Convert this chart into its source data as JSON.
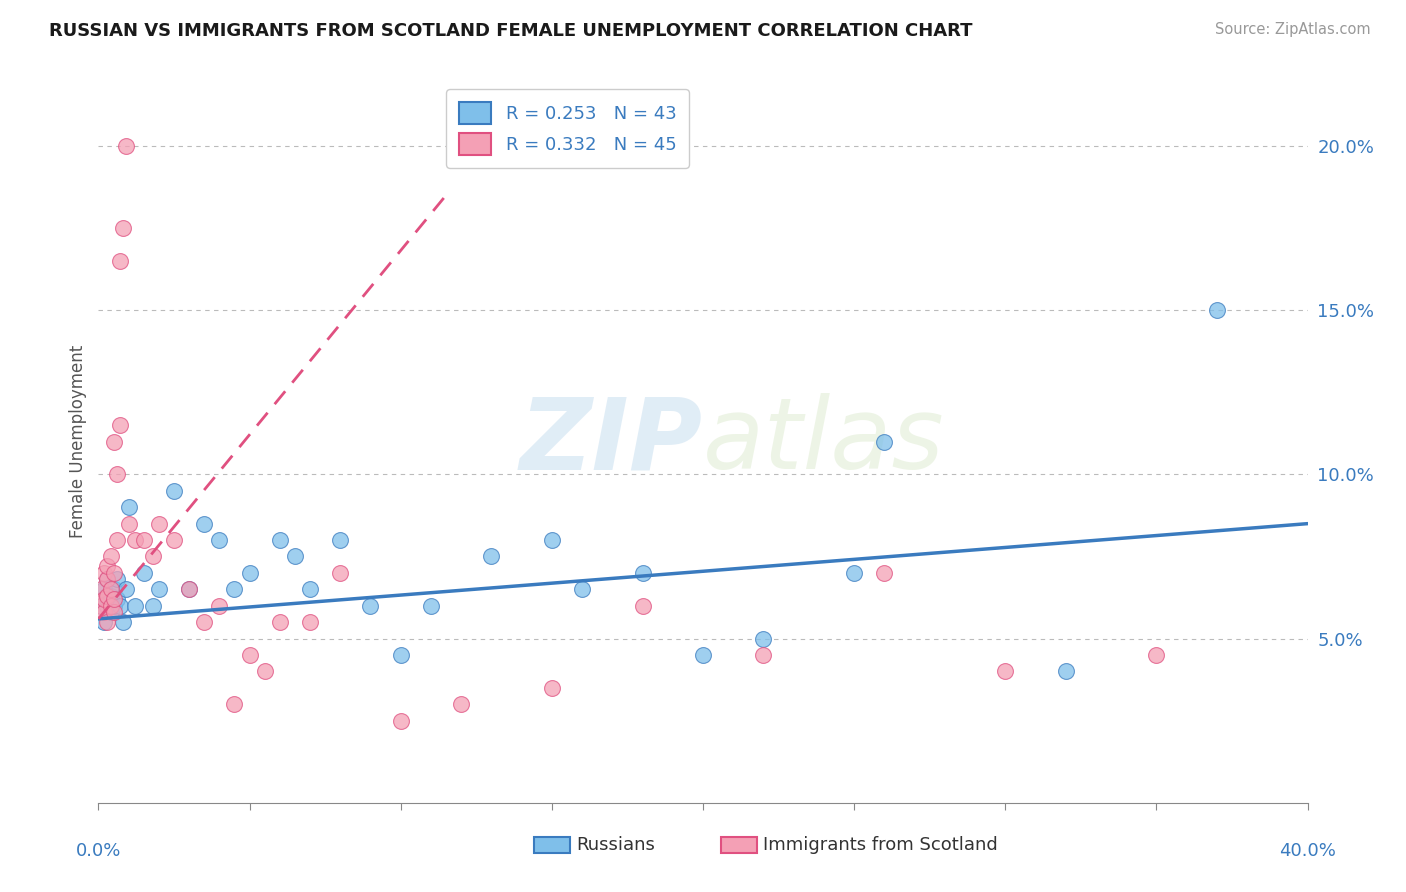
{
  "title": "RUSSIAN VS IMMIGRANTS FROM SCOTLAND FEMALE UNEMPLOYMENT CORRELATION CHART",
  "source": "Source: ZipAtlas.com",
  "ylabel": "Female Unemployment",
  "ytick_values": [
    0.05,
    0.1,
    0.15,
    0.2
  ],
  "xlim": [
    0.0,
    0.4
  ],
  "ylim": [
    0.0,
    0.22
  ],
  "legend_r1_text": "R = 0.253   N = 43",
  "legend_r2_text": "R = 0.332   N = 45",
  "color_blue": "#7fbfea",
  "color_pink": "#f4a0b5",
  "color_blue_line": "#3a7bbf",
  "color_pink_line": "#e05080",
  "color_grid": "#bbbbbb",
  "russians_x": [
    0.001,
    0.002,
    0.002,
    0.003,
    0.003,
    0.003,
    0.004,
    0.004,
    0.005,
    0.005,
    0.006,
    0.006,
    0.007,
    0.008,
    0.009,
    0.01,
    0.012,
    0.015,
    0.018,
    0.02,
    0.025,
    0.03,
    0.035,
    0.04,
    0.045,
    0.05,
    0.06,
    0.065,
    0.07,
    0.08,
    0.09,
    0.1,
    0.11,
    0.13,
    0.15,
    0.16,
    0.18,
    0.2,
    0.22,
    0.25,
    0.26,
    0.32,
    0.37
  ],
  "russians_y": [
    0.06,
    0.055,
    0.065,
    0.06,
    0.062,
    0.068,
    0.058,
    0.063,
    0.06,
    0.065,
    0.062,
    0.068,
    0.06,
    0.055,
    0.065,
    0.09,
    0.06,
    0.07,
    0.06,
    0.065,
    0.095,
    0.065,
    0.085,
    0.08,
    0.065,
    0.07,
    0.08,
    0.075,
    0.065,
    0.08,
    0.06,
    0.045,
    0.06,
    0.075,
    0.08,
    0.065,
    0.07,
    0.045,
    0.05,
    0.07,
    0.11,
    0.04,
    0.15
  ],
  "scotland_x": [
    0.001,
    0.001,
    0.002,
    0.002,
    0.002,
    0.003,
    0.003,
    0.003,
    0.003,
    0.004,
    0.004,
    0.004,
    0.005,
    0.005,
    0.005,
    0.005,
    0.006,
    0.006,
    0.007,
    0.007,
    0.008,
    0.009,
    0.01,
    0.012,
    0.015,
    0.018,
    0.02,
    0.025,
    0.03,
    0.035,
    0.04,
    0.045,
    0.05,
    0.055,
    0.06,
    0.07,
    0.08,
    0.1,
    0.12,
    0.15,
    0.18,
    0.22,
    0.26,
    0.3,
    0.35
  ],
  "scotland_y": [
    0.06,
    0.065,
    0.058,
    0.062,
    0.07,
    0.055,
    0.063,
    0.068,
    0.072,
    0.06,
    0.065,
    0.075,
    0.058,
    0.062,
    0.07,
    0.11,
    0.1,
    0.08,
    0.165,
    0.115,
    0.175,
    0.2,
    0.085,
    0.08,
    0.08,
    0.075,
    0.085,
    0.08,
    0.065,
    0.055,
    0.06,
    0.03,
    0.045,
    0.04,
    0.055,
    0.055,
    0.07,
    0.025,
    0.03,
    0.035,
    0.06,
    0.045,
    0.07,
    0.04,
    0.045
  ],
  "blue_line_x": [
    0.0,
    0.4
  ],
  "blue_line_y": [
    0.056,
    0.085
  ],
  "pink_line_x": [
    0.0,
    0.115
  ],
  "pink_line_y": [
    0.056,
    0.185
  ]
}
